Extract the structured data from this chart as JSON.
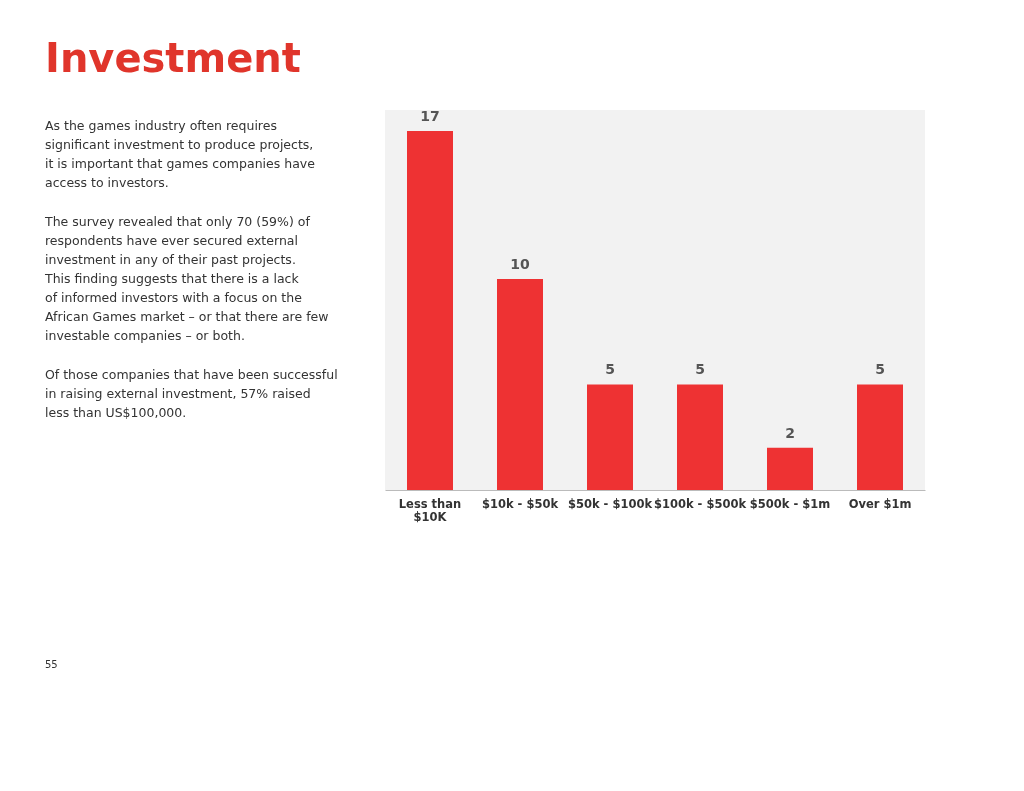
{
  "chart_data": {
    "type": "bar",
    "title": "Investment",
    "categories": [
      "Less than $10K",
      "$10k - $50k",
      "$50k - $100k",
      "$100k - $500k",
      "$500k - $1m",
      "Over $1m"
    ],
    "values": [
      17,
      10,
      5,
      5,
      2,
      5
    ],
    "color": "#ee3233",
    "data_labels": true,
    "annotations": [
      "As the games industry often requires significant investment to produce projects, it is important that games companies have access to investors.",
      "The survey revealed that only 70 (59%) of respondents have ever secured external investment in any of their past projects. This finding suggests that there is a lack of informed investors with a focus on the African Games market – or that there are few investable companies – or both.",
      "Of those companies that have been successful in raising external investment, 57% raised less than US$100,000.",
      "55"
    ]
  }
}
